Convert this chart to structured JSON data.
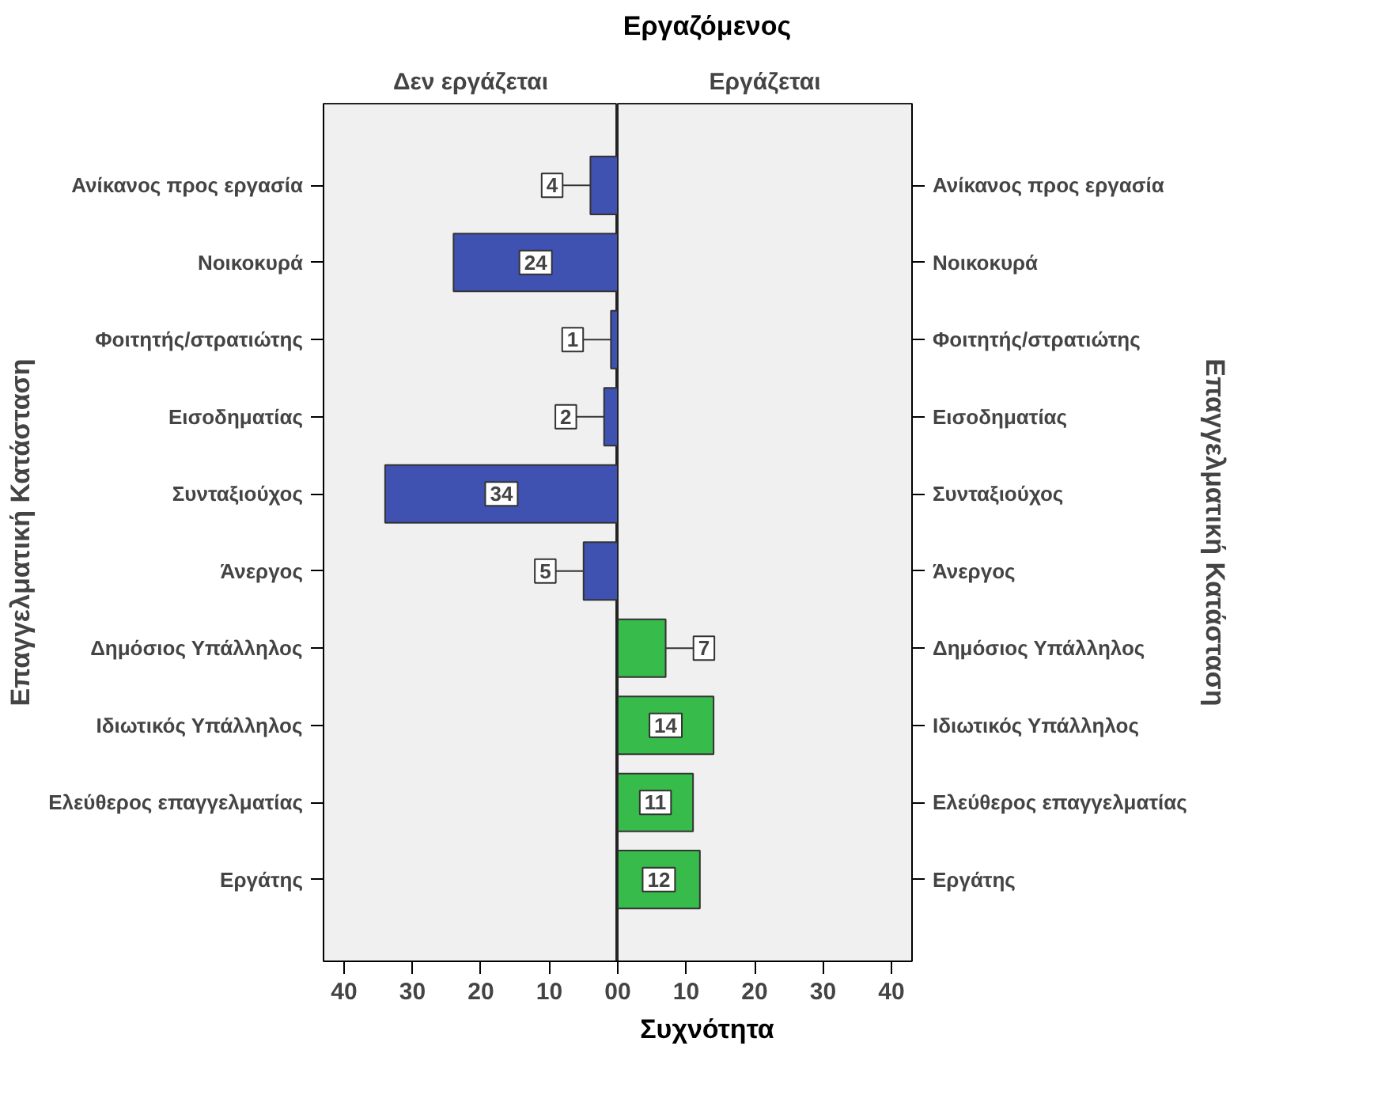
{
  "chart_data": [
    {
      "type": "bar",
      "orientation": "horizontal",
      "title": "Δεν εργάζεται",
      "annotations": [
        "Εργαζόμενος"
      ],
      "xlabel": "Συχνότητα",
      "ylabel": "Επαγγελματική Κατάσταση",
      "categories": [
        "Ανίκανος προς εργασία",
        "Νοικοκυρά",
        "Φοιτητής/στρατιώτης",
        "Εισοδηματίας",
        "Συνταξιούχος",
        "Άνεργος",
        "Δημόσιος Υπάλληλος",
        "Ιδιωτικός Υπάλληλος",
        "Ελεύθερος επαγγελματίας",
        "Εργάτης"
      ],
      "values": [
        4,
        24,
        1,
        2,
        34,
        5,
        null,
        null,
        null,
        null
      ],
      "color": "#3f51b1",
      "xlim": [
        43,
        0
      ],
      "xticks": [
        0,
        10,
        20,
        30,
        40
      ],
      "data_labels": true,
      "grid": false
    },
    {
      "type": "bar",
      "orientation": "horizontal",
      "title": "Εργάζεται",
      "y2label": "Επαγγελματική Κατάσταση",
      "categories": [
        "Ανίκανος προς εργασία",
        "Νοικοκυρά",
        "Φοιτητής/στρατιώτης",
        "Εισοδηματίας",
        "Συνταξιούχος",
        "Άνεργος",
        "Δημόσιος Υπάλληλος",
        "Ιδιωτικός Υπάλληλος",
        "Ελεύθερος επαγγελματίας",
        "Εργάτης"
      ],
      "values": [
        null,
        null,
        null,
        null,
        null,
        null,
        7,
        14,
        11,
        12
      ],
      "color": "#37bb4b",
      "xlim": [
        0,
        43
      ],
      "xticks": [
        0,
        10,
        20,
        30,
        40
      ],
      "data_labels": true,
      "grid": false
    }
  ]
}
